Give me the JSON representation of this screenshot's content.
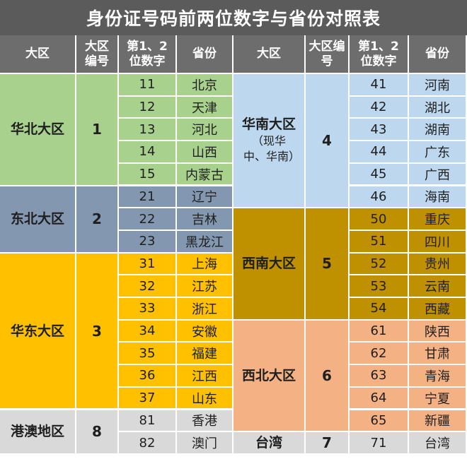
{
  "title": "身份证号码前两位数字与省份对照表",
  "headers": {
    "region": "大区",
    "region_no": "大区编号",
    "digits": "第1、2位数字",
    "province": "省份"
  },
  "left_regions": [
    {
      "name": "华北大区",
      "no": "1",
      "color": "#a9d18e",
      "rows": [
        [
          "11",
          "北京"
        ],
        [
          "12",
          "天津"
        ],
        [
          "13",
          "河北"
        ],
        [
          "14",
          "山西"
        ],
        [
          "15",
          "内蒙古"
        ]
      ]
    },
    {
      "name": "东北大区",
      "no": "2",
      "color": "#8497b0",
      "rows": [
        [
          "21",
          "辽宁"
        ],
        [
          "22",
          "吉林"
        ],
        [
          "23",
          "黑龙江"
        ]
      ]
    },
    {
      "name": "华东大区",
      "no": "3",
      "color": "#ffc000",
      "rows": [
        [
          "31",
          "上海"
        ],
        [
          "32",
          "江苏"
        ],
        [
          "33",
          "浙江"
        ],
        [
          "34",
          "安徽"
        ],
        [
          "35",
          "福建"
        ],
        [
          "36",
          "江西"
        ],
        [
          "37",
          "山东"
        ]
      ]
    },
    {
      "name": "港澳地区",
      "no": "8",
      "color": "#d9d9d9",
      "rows": [
        [
          "81",
          "香港"
        ],
        [
          "82",
          "澳门"
        ]
      ]
    }
  ],
  "right_regions": [
    {
      "name": "华南大区",
      "sub": "（现华中、华南）",
      "no": "4",
      "color": "#bdd7ee",
      "rows": [
        [
          "41",
          "河南"
        ],
        [
          "42",
          "湖北"
        ],
        [
          "43",
          "湖南"
        ],
        [
          "44",
          "广东"
        ],
        [
          "45",
          "广西"
        ],
        [
          "46",
          "海南"
        ]
      ]
    },
    {
      "name": "西南大区",
      "no": "5",
      "color": "#bf9000",
      "rows": [
        [
          "50",
          "重庆"
        ],
        [
          "51",
          "四川"
        ],
        [
          "52",
          "贵州"
        ],
        [
          "53",
          "云南"
        ],
        [
          "54",
          "西藏"
        ]
      ]
    },
    {
      "name": "西北大区",
      "no": "6",
      "color": "#f4b183",
      "rows": [
        [
          "61",
          "陕西"
        ],
        [
          "62",
          "甘肃"
        ],
        [
          "63",
          "青海"
        ],
        [
          "64",
          "宁夏"
        ],
        [
          "65",
          "新疆"
        ]
      ]
    },
    {
      "name": "台湾",
      "no": "7",
      "color": "#d9d9d9",
      "rows": [
        [
          "71",
          "台湾"
        ]
      ]
    }
  ],
  "colors": {
    "title_bg": "#5b5b5b",
    "header_bg": "#6d6d6d"
  }
}
